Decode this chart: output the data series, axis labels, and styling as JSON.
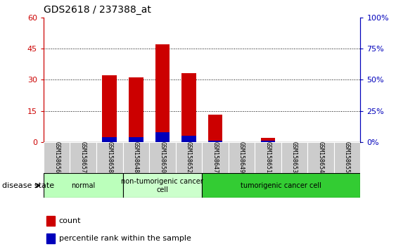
{
  "title": "GDS2618 / 237388_at",
  "samples": [
    "GSM158656",
    "GSM158657",
    "GSM158658",
    "GSM158648",
    "GSM158650",
    "GSM158652",
    "GSM158647",
    "GSM158649",
    "GSM158651",
    "GSM158653",
    "GSM158654",
    "GSM158655"
  ],
  "counts": [
    0,
    0,
    32,
    31,
    47,
    33,
    13,
    0,
    2,
    0,
    0,
    0
  ],
  "percentiles": [
    0,
    0,
    4,
    4,
    8,
    5,
    1,
    0,
    1,
    0,
    0,
    0
  ],
  "ylim_left": [
    0,
    60
  ],
  "ylim_right": [
    0,
    100
  ],
  "yticks_left": [
    0,
    15,
    30,
    45,
    60
  ],
  "yticks_right": [
    0,
    25,
    50,
    75,
    100
  ],
  "yticklabels_left": [
    "0",
    "15",
    "30",
    "45",
    "60"
  ],
  "yticklabels_right": [
    "0%",
    "25%",
    "50%",
    "75%",
    "100%"
  ],
  "bar_color": "#cc0000",
  "percentile_color": "#0000bb",
  "groups": [
    {
      "label": "normal",
      "start": 0,
      "end": 2,
      "color": "#bbffbb"
    },
    {
      "label": "non-tumorigenic cancer\ncell",
      "start": 3,
      "end": 5,
      "color": "#ccffcc"
    },
    {
      "label": "tumorigenic cancer cell",
      "start": 6,
      "end": 11,
      "color": "#33cc33"
    }
  ],
  "disease_state_label": "disease state",
  "legend_count_label": "count",
  "legend_percentile_label": "percentile rank within the sample",
  "bar_width": 0.55,
  "background_color": "#ffffff",
  "tick_label_bg": "#cccccc",
  "left_axis_color": "#cc0000",
  "right_axis_color": "#0000bb",
  "percentile_scale_factor": 0.6
}
